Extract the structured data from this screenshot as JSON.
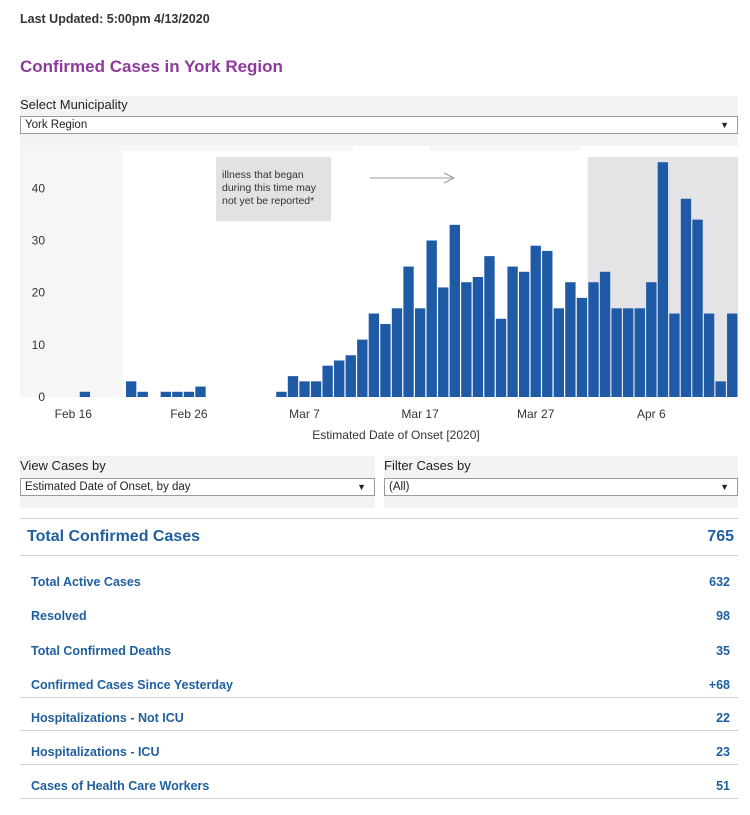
{
  "last_updated": "Last Updated: 5:00pm 4/13/2020",
  "title": "Confirmed Cases in York Region",
  "municipality": {
    "label": "Select Municipality",
    "selected": "York Region"
  },
  "view_cases": {
    "label": "View Cases by",
    "selected": "Estimated Date of Onset, by day"
  },
  "filter_cases": {
    "label": "Filter Cases by",
    "selected": "(All)"
  },
  "chart_note": [
    "illness that began",
    "during this time may",
    "not yet be reported*"
  ],
  "colors": {
    "bar": "#1f5aa6",
    "title": "#8e3a9c",
    "stat_text": "#1f5f9e",
    "shade": "#e4e4e6"
  },
  "icons": {
    "caret": "caret-down-icon",
    "arrow": "right-arrow-icon"
  },
  "chart_data": {
    "type": "bar",
    "xlabel": "Estimated Date of Onset [2020]",
    "ylabel": "",
    "x_tick_labels": [
      "Feb 16",
      "Feb 26",
      "Mar 7",
      "Mar 17",
      "Mar 27",
      "Apr 6"
    ],
    "y_tick_labels": [
      "0",
      "10",
      "20",
      "30",
      "40"
    ],
    "ylim": [
      0,
      46
    ],
    "grid": false,
    "shaded_region": {
      "from": "Apr 1",
      "to": "Apr 13"
    },
    "categories": [
      "Feb 15",
      "Feb 16",
      "Feb 17",
      "Feb 18",
      "Feb 19",
      "Feb 20",
      "Feb 21",
      "Feb 22",
      "Feb 23",
      "Feb 24",
      "Feb 25",
      "Feb 26",
      "Feb 27",
      "Feb 28",
      "Feb 29",
      "Mar 1",
      "Mar 2",
      "Mar 3",
      "Mar 4",
      "Mar 5",
      "Mar 6",
      "Mar 7",
      "Mar 8",
      "Mar 9",
      "Mar 10",
      "Mar 11",
      "Mar 12",
      "Mar 13",
      "Mar 14",
      "Mar 15",
      "Mar 16",
      "Mar 17",
      "Mar 18",
      "Mar 19",
      "Mar 20",
      "Mar 21",
      "Mar 22",
      "Mar 23",
      "Mar 24",
      "Mar 25",
      "Mar 26",
      "Mar 27",
      "Mar 28",
      "Mar 29",
      "Mar 30",
      "Mar 31",
      "Apr 1",
      "Apr 2",
      "Apr 3",
      "Apr 4",
      "Apr 5",
      "Apr 6",
      "Apr 7",
      "Apr 8",
      "Apr 9",
      "Apr 10",
      "Apr 11",
      "Apr 12",
      "Apr 13"
    ],
    "values": [
      0,
      0,
      1,
      0,
      0,
      0,
      3,
      1,
      0,
      1,
      1,
      1,
      2,
      0,
      0,
      0,
      0,
      0,
      0,
      1,
      4,
      3,
      3,
      6,
      7,
      8,
      11,
      16,
      14,
      17,
      25,
      17,
      30,
      21,
      33,
      22,
      23,
      27,
      15,
      25,
      24,
      29,
      28,
      17,
      22,
      19,
      22,
      24,
      17,
      17,
      17,
      22,
      45,
      16,
      38,
      34,
      16,
      3,
      16
    ]
  },
  "stats": {
    "total": {
      "label": "Total Confirmed Cases",
      "value": "765"
    },
    "rows": [
      {
        "label": "Total Active Cases",
        "value": "632"
      },
      {
        "label": "Resolved",
        "value": "98"
      },
      {
        "label": "Total Confirmed Deaths",
        "value": "35"
      },
      {
        "label": "Confirmed Cases Since Yesterday",
        "value": "+68"
      },
      {
        "label": "Hospitalizations - Not ICU",
        "value": "22"
      },
      {
        "label": "Hospitalizations - ICU",
        "value": "23"
      },
      {
        "label": "Cases of Health Care Workers",
        "value": "51"
      }
    ]
  }
}
